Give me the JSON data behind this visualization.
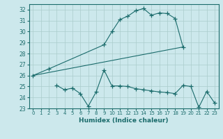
{
  "xlabel": "Humidex (Indice chaleur)",
  "bg_color": "#cce8ec",
  "line_color": "#1a6b6b",
  "grid_color": "#aacccc",
  "xlim": [
    -0.5,
    23.5
  ],
  "ylim": [
    23,
    32.5
  ],
  "yticks": [
    23,
    24,
    25,
    26,
    27,
    28,
    29,
    30,
    31,
    32
  ],
  "xticks": [
    0,
    1,
    2,
    3,
    4,
    5,
    6,
    7,
    8,
    9,
    10,
    11,
    12,
    13,
    14,
    15,
    16,
    17,
    18,
    19,
    20,
    21,
    22,
    23
  ],
  "line1_x": [
    0,
    2,
    9,
    10,
    11,
    12,
    13,
    14,
    15,
    16,
    17,
    18,
    19
  ],
  "line1_y": [
    26.0,
    26.6,
    28.8,
    30.0,
    31.1,
    31.4,
    31.9,
    32.1,
    31.5,
    31.7,
    31.65,
    31.2,
    28.6
  ],
  "line2_x": [
    0,
    19
  ],
  "line2_y": [
    26.0,
    28.6
  ],
  "line3_x": [
    3,
    4,
    5,
    6,
    7,
    8,
    9,
    10,
    11,
    12,
    13,
    14,
    15,
    16,
    17,
    18,
    19,
    20,
    21,
    22,
    23
  ],
  "line3_y": [
    25.1,
    24.7,
    24.85,
    24.35,
    23.2,
    24.5,
    26.5,
    25.05,
    25.05,
    25.0,
    24.8,
    24.7,
    24.6,
    24.5,
    24.45,
    24.35,
    25.1,
    25.0,
    23.1,
    24.55,
    23.5
  ]
}
